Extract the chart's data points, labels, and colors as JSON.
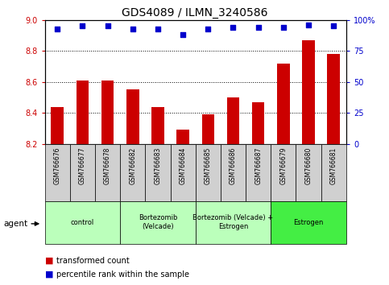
{
  "title": "GDS4089 / ILMN_3240586",
  "samples": [
    "GSM766676",
    "GSM766677",
    "GSM766678",
    "GSM766682",
    "GSM766683",
    "GSM766684",
    "GSM766685",
    "GSM766686",
    "GSM766687",
    "GSM766679",
    "GSM766680",
    "GSM766681"
  ],
  "bar_values": [
    8.44,
    8.61,
    8.61,
    8.55,
    8.44,
    8.29,
    8.39,
    8.5,
    8.47,
    8.72,
    8.87,
    8.78
  ],
  "percentile_values": [
    93,
    95,
    95,
    93,
    93,
    88,
    93,
    94,
    94,
    94,
    96,
    95
  ],
  "ylim_left": [
    8.2,
    9.0
  ],
  "ylim_right": [
    0,
    100
  ],
  "yticks_left": [
    8.2,
    8.4,
    8.6,
    8.8,
    9.0
  ],
  "yticks_right": [
    0,
    25,
    50,
    75,
    100
  ],
  "ytick_labels_right": [
    "0",
    "25",
    "50",
    "75",
    "100%"
  ],
  "bar_color": "#cc0000",
  "dot_color": "#0000cc",
  "group_info": [
    {
      "label": "control",
      "start": 0,
      "end": 2,
      "color": "#bbffbb"
    },
    {
      "label": "Bortezomib\n(Velcade)",
      "start": 3,
      "end": 5,
      "color": "#bbffbb"
    },
    {
      "label": "Bortezomib (Velcade) +\nEstrogen",
      "start": 6,
      "end": 8,
      "color": "#bbffbb"
    },
    {
      "label": "Estrogen",
      "start": 9,
      "end": 11,
      "color": "#44ee44"
    }
  ],
  "agent_label": "agent",
  "legend_bar_label": "transformed count",
  "legend_dot_label": "percentile rank within the sample",
  "sample_box_color": "#d0d0d0",
  "tick_fontsize": 7,
  "bar_width": 0.5
}
